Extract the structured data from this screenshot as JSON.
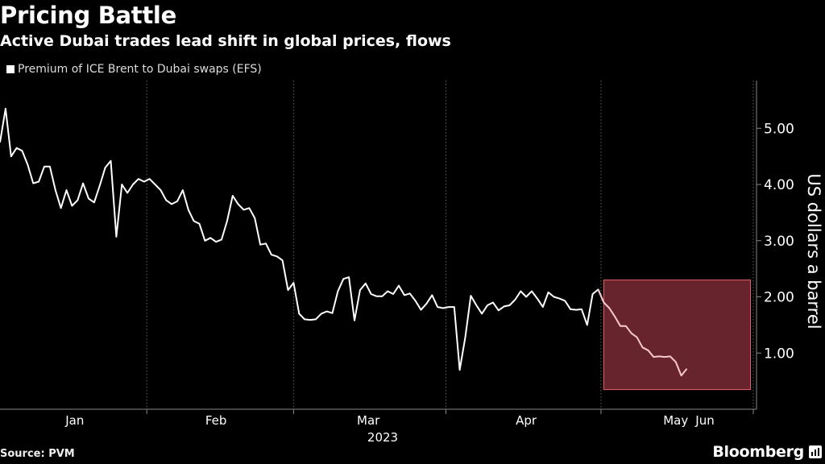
{
  "header": {
    "title": "Pricing Battle",
    "subtitle": "Active Dubai trades lead shift in global prices, flows"
  },
  "footer": {
    "source": "Source: PVM",
    "brand": "Bloomberg"
  },
  "colors": {
    "background": "#000000",
    "line": "#ffffff",
    "grid": "#666666",
    "highlight_fill": "#7a2a34",
    "highlight_stroke": "#e8606c",
    "highlight_line": "#f4c8cc"
  },
  "icons": {
    "brand": "bloomberg-chart-icon"
  },
  "chart_data": {
    "type": "line",
    "title": "Pricing Battle",
    "subtitle": "Active Dubai trades lead shift in global prices, flows",
    "ylabel": "US dollars a barrel",
    "xlabel": "2023",
    "ylim": [
      0.0,
      5.85
    ],
    "yticks": [
      1.0,
      2.0,
      3.0,
      4.0,
      5.0
    ],
    "ytick_labels": [
      "1.00",
      "2.00",
      "3.00",
      "4.00",
      "5.00"
    ],
    "x_range": [
      0,
      136
    ],
    "xticks": [
      {
        "label": "Jan",
        "x": 13.5
      },
      {
        "label": "Feb",
        "x": 39
      },
      {
        "label": "Mar",
        "x": 66.5
      },
      {
        "label": "Apr",
        "x": 95
      },
      {
        "label": "May",
        "x": 122
      },
      {
        "label": "Jun",
        "x": 150
      }
    ],
    "month_boundaries": [
      26.5,
      53,
      80.5,
      108.5,
      136,
      164
    ],
    "grid": "vertical",
    "legend": "top-left",
    "series": [
      {
        "name": "Premium of ICE Brent to Dubai swaps (EFS)",
        "values": [
          4.75,
          5.35,
          4.5,
          4.65,
          4.6,
          4.35,
          4.02,
          4.05,
          4.32,
          4.32,
          3.9,
          3.58,
          3.9,
          3.62,
          3.72,
          4.02,
          3.75,
          3.68,
          3.98,
          4.3,
          4.42,
          3.07,
          4.0,
          3.85,
          4.0,
          4.1,
          4.05,
          4.1,
          4.0,
          3.9,
          3.72,
          3.65,
          3.7,
          3.9,
          3.55,
          3.35,
          3.3,
          3.0,
          3.05,
          2.98,
          3.02,
          3.35,
          3.8,
          3.65,
          3.55,
          3.58,
          3.4,
          2.93,
          2.95,
          2.75,
          2.72,
          2.65,
          2.12,
          2.25,
          1.7,
          1.6,
          1.59,
          1.6,
          1.7,
          1.74,
          1.71,
          2.1,
          2.32,
          2.35,
          1.58,
          2.12,
          2.24,
          2.05,
          2.01,
          2.01,
          2.1,
          2.05,
          2.2,
          2.03,
          2.06,
          1.93,
          1.77,
          1.88,
          2.03,
          1.82,
          1.8,
          1.82,
          1.82,
          0.7,
          1.28,
          2.02,
          1.85,
          1.7,
          1.85,
          1.9,
          1.76,
          1.83,
          1.85,
          1.95,
          2.1,
          2.0,
          2.1,
          1.97,
          1.82,
          2.08,
          2.0,
          1.97,
          1.93,
          1.78,
          1.77,
          1.78,
          1.5,
          2.05,
          2.13,
          1.9,
          1.8,
          1.65,
          1.48,
          1.48,
          1.35,
          1.28,
          1.1,
          1.05,
          0.93,
          0.94,
          0.93,
          0.94,
          0.84,
          0.6,
          0.72
        ]
      }
    ],
    "highlight_region": {
      "x_range": [
        109,
        135.5
      ],
      "y_range": [
        0.35,
        2.3
      ]
    }
  }
}
